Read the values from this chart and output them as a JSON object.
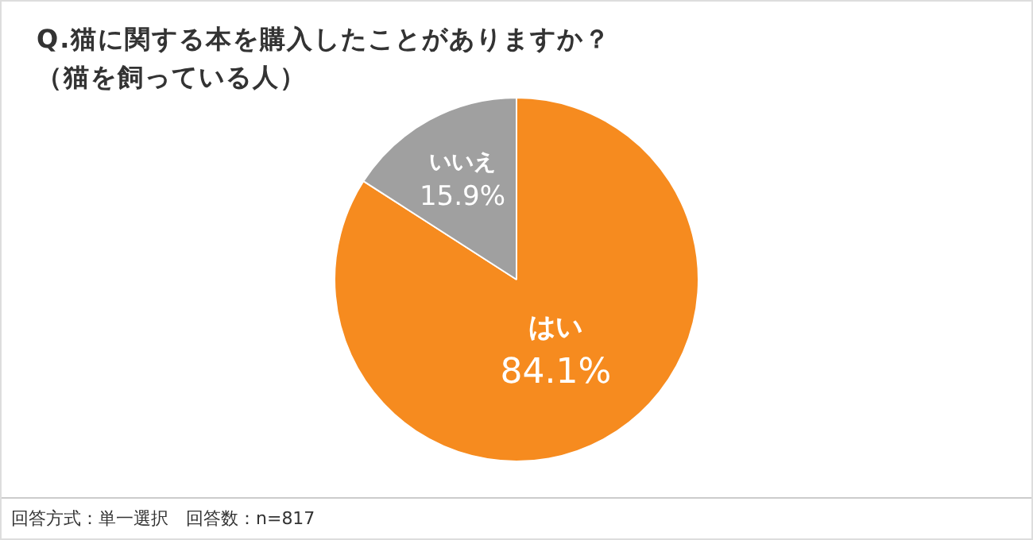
{
  "chart_data": {
    "type": "pie",
    "title": "Q.猫に関する本を購入したことがありますか？",
    "subtitle": "（猫を飼っている人）",
    "categories": [
      "はい",
      "いいえ"
    ],
    "values": [
      84.1,
      15.9
    ],
    "colors": [
      "#f68b1f",
      "#a0a0a0"
    ],
    "value_labels": [
      "84.1%",
      "15.9%"
    ],
    "annotations": [
      "回答方式：単一選択　回答数：n=817"
    ],
    "legend": false
  }
}
